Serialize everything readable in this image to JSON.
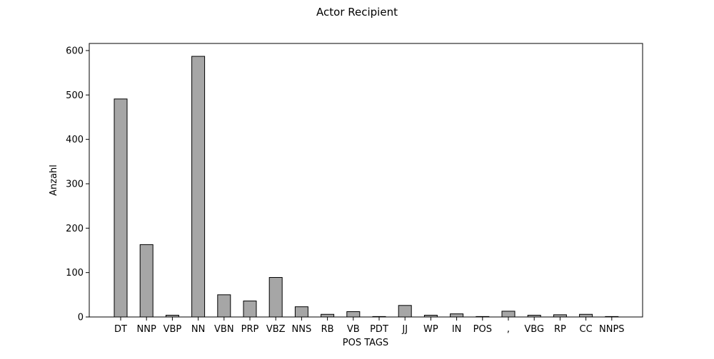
{
  "chart_data": {
    "type": "bar",
    "title": "Actor Recipient",
    "xlabel": "POS TAGS",
    "ylabel": "Anzahl",
    "categories": [
      "DT",
      "NNP",
      "VBP",
      "NN",
      "VBN",
      "PRP",
      "VBZ",
      "NNS",
      "RB",
      "VB",
      "PDT",
      "JJ",
      "WP",
      "IN",
      "POS",
      ",",
      "VBG",
      "RP",
      "CC",
      "NNPS"
    ],
    "values": [
      491,
      163,
      4,
      587,
      50,
      36,
      89,
      23,
      6,
      12,
      1,
      26,
      4,
      7,
      1,
      13,
      4,
      5,
      6,
      1
    ],
    "ylim": [
      0,
      616
    ],
    "yticks": [
      0,
      100,
      200,
      300,
      400,
      500,
      600
    ],
    "grid": false,
    "bar_color": "#a6a6a6",
    "edge_color": "#000000"
  }
}
